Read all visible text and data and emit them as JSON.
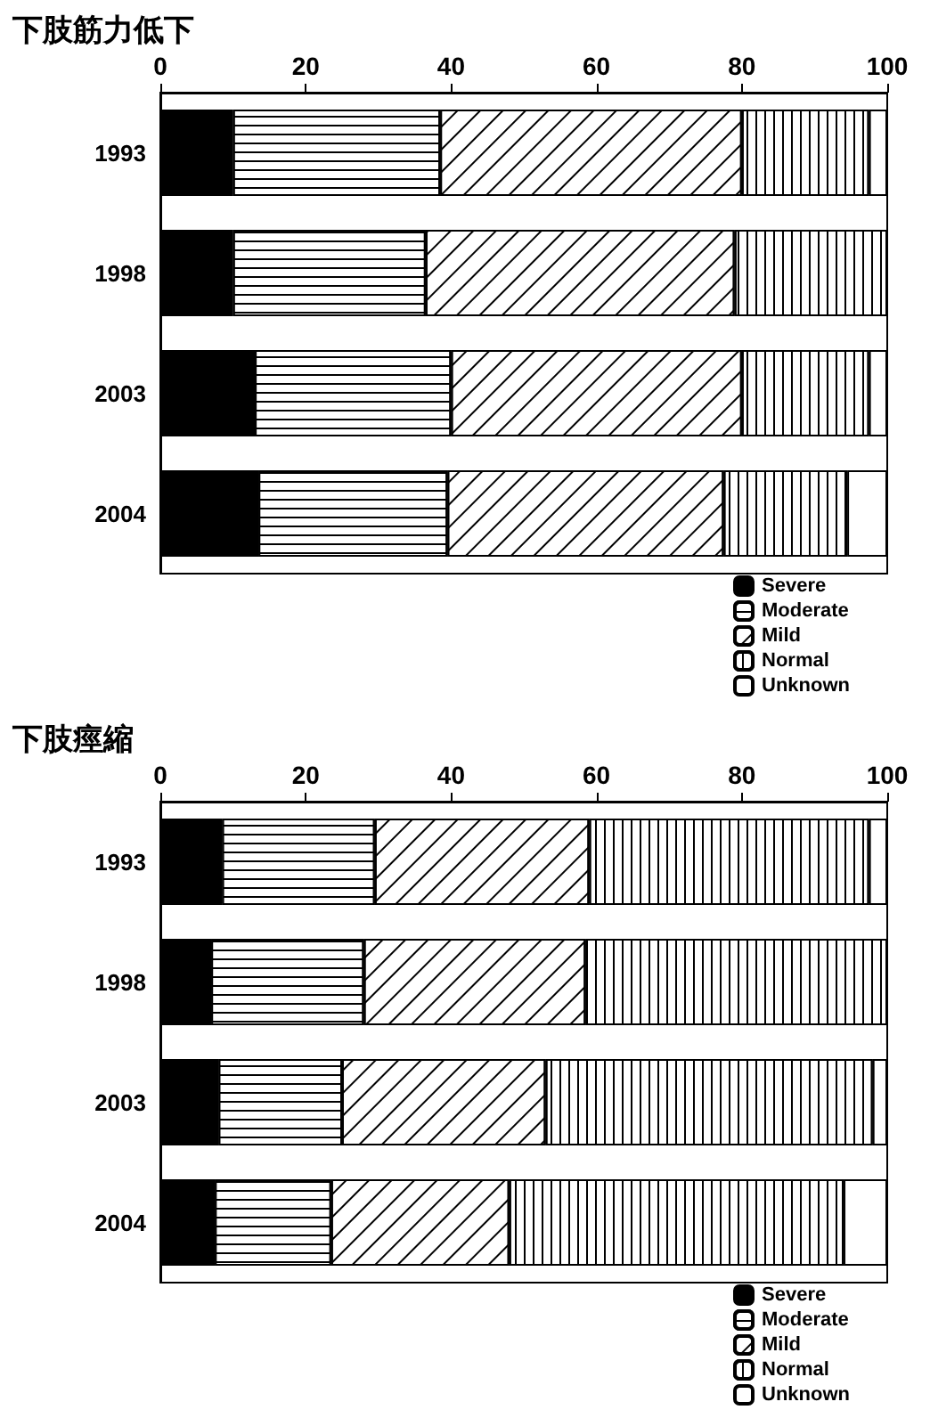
{
  "chart_data": [
    {
      "type": "bar",
      "title": "下肢筋力低下",
      "orientation": "horizontal",
      "stacked": true,
      "categories": [
        "1993",
        "1998",
        "2003",
        "2004"
      ],
      "xlim": [
        0,
        100
      ],
      "xticks": [
        0,
        20,
        40,
        60,
        80,
        100
      ],
      "grid": false,
      "legend": "bottom right",
      "series": [
        {
          "name": "Severe",
          "color": "#000000",
          "values": [
            10,
            10,
            13,
            13.5
          ]
        },
        {
          "name": "Moderate",
          "color": "#ffffff",
          "values": [
            28.5,
            26.5,
            27,
            26
          ]
        },
        {
          "name": "Mild",
          "color": "#ffffff",
          "values": [
            41.5,
            42.5,
            40,
            38
          ]
        },
        {
          "name": "Normal",
          "color": "#ffffff",
          "values": [
            17.5,
            21,
            17.5,
            17
          ]
        },
        {
          "name": "Unknown",
          "color": "#ffffff",
          "values": [
            2.5,
            0,
            2.5,
            5.5
          ]
        }
      ]
    },
    {
      "type": "bar",
      "title": "下肢痙縮",
      "orientation": "horizontal",
      "stacked": true,
      "categories": [
        "1993",
        "1998",
        "2003",
        "2004"
      ],
      "xlim": [
        0,
        100
      ],
      "xticks": [
        0,
        20,
        40,
        60,
        80,
        100
      ],
      "grid": false,
      "legend": "bottom right",
      "series": [
        {
          "name": "Severe",
          "color": "#000000",
          "values": [
            8.5,
            7,
            8,
            7.5
          ]
        },
        {
          "name": "Moderate",
          "color": "#ffffff",
          "values": [
            21,
            21,
            17,
            16
          ]
        },
        {
          "name": "Mild",
          "color": "#ffffff",
          "values": [
            29.5,
            30.5,
            28,
            24.5
          ]
        },
        {
          "name": "Normal",
          "color": "#ffffff",
          "values": [
            38.5,
            41.5,
            45,
            46
          ]
        },
        {
          "name": "Unknown",
          "color": "#ffffff",
          "values": [
            2.5,
            0,
            2,
            6
          ]
        }
      ]
    }
  ]
}
